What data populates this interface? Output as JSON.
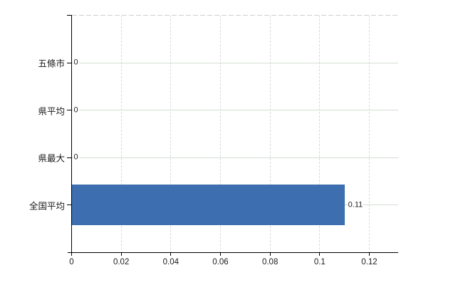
{
  "chart_data": {
    "type": "bar",
    "orientation": "horizontal",
    "title": "",
    "categories": [
      "五條市",
      "県平均",
      "県最大",
      "全国平均"
    ],
    "values": [
      0,
      0,
      0,
      0.11
    ],
    "value_labels": [
      "0",
      "0",
      "0",
      "0.11"
    ],
    "x_tick_labels": [
      "0",
      "0.02",
      "0.04",
      "0.06",
      "0.08",
      "0.1",
      "0.12"
    ],
    "xlim": [
      0,
      0.132
    ],
    "xlabel": "",
    "ylabel": "",
    "grid": true,
    "legend": false,
    "colors": {
      "bar": "#3d6eaf",
      "h_grid": "#d5ddd2",
      "v_grid": "#d9d9dc",
      "top_grid": "#cfcfd2",
      "axis": "#000000",
      "label": "#1a1a1a"
    }
  }
}
